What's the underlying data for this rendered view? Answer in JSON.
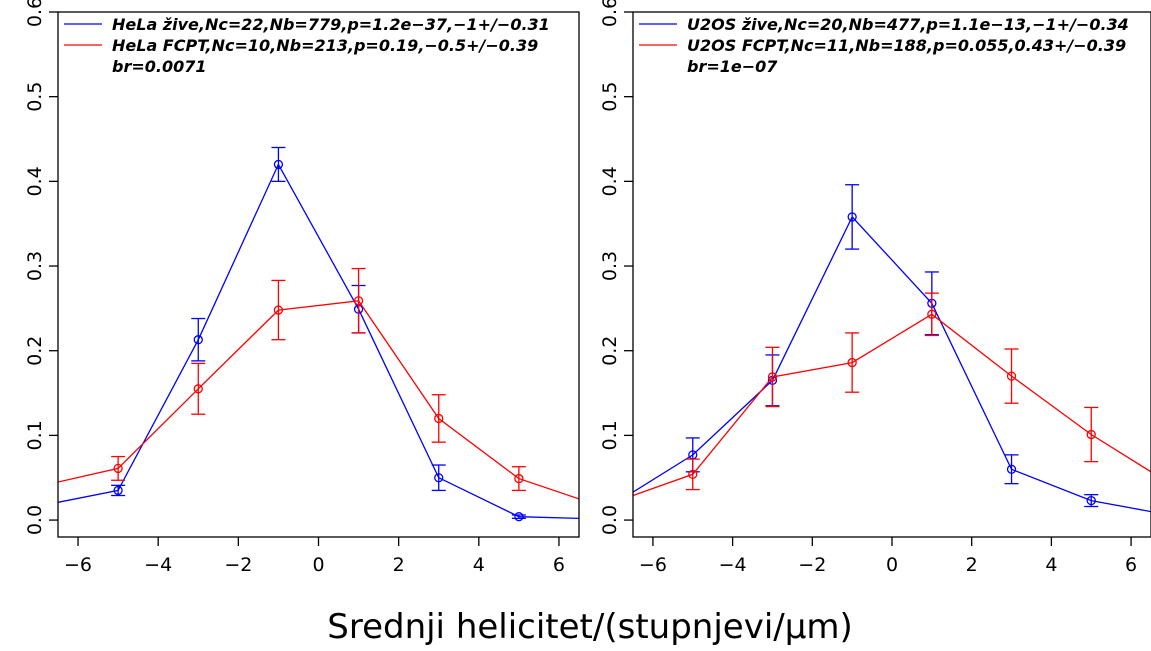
{
  "figure": {
    "xlabel": "Srednji helicitet/(stupnjevi/µm)"
  },
  "chart_data": [
    {
      "type": "line",
      "title": "",
      "xlabel": "",
      "ylabel": "",
      "xlim": [
        -6.5,
        6.5
      ],
      "ylim": [
        -0.02,
        0.6
      ],
      "xticks": [
        -6,
        -4,
        -2,
        0,
        2,
        4,
        6
      ],
      "xtick_labels": [
        "−6",
        "−4",
        "−2",
        "0",
        "2",
        "4",
        "6"
      ],
      "yticks": [
        0.0,
        0.1,
        0.2,
        0.3,
        0.4,
        0.5,
        0.6
      ],
      "ytick_labels": [
        "0.0",
        "0.1",
        "0.2",
        "0.3",
        "0.4",
        "0.5",
        "0.6"
      ],
      "grid": false,
      "legend_position": "top-left",
      "legend_note": "br=0.0071",
      "series": [
        {
          "name": "HeLa žive,Nc=22,Nb=779,p=1.2e−37,−1+/−0.31",
          "color": "#0000ff",
          "x": [
            -5,
            -3,
            -1,
            1,
            3,
            5
          ],
          "y": [
            0.035,
            0.213,
            0.42,
            0.249,
            0.05,
            0.004
          ],
          "err": [
            0.006,
            0.025,
            0.02,
            0.028,
            0.015,
            0.002
          ],
          "line_start": [
            -6.5,
            0.021
          ],
          "line_end": [
            6.5,
            0.002
          ]
        },
        {
          "name": "HeLa FCPT,Nc=10,Nb=213,p=0.19,−0.5+/−0.39",
          "color": "#ff0000",
          "x": [
            -5,
            -3,
            -1,
            1,
            3,
            5
          ],
          "y": [
            0.061,
            0.155,
            0.248,
            0.259,
            0.12,
            0.049
          ],
          "err": [
            0.014,
            0.03,
            0.035,
            0.038,
            0.028,
            0.014
          ],
          "line_start": [
            -6.5,
            0.045
          ],
          "line_end": [
            6.5,
            0.025
          ]
        }
      ]
    },
    {
      "type": "line",
      "title": "",
      "xlabel": "",
      "ylabel": "",
      "xlim": [
        -6.5,
        6.5
      ],
      "ylim": [
        -0.02,
        0.6
      ],
      "xticks": [
        -6,
        -4,
        -2,
        0,
        2,
        4,
        6
      ],
      "xtick_labels": [
        "−6",
        "−4",
        "−2",
        "0",
        "2",
        "4",
        "6"
      ],
      "yticks": [
        0.0,
        0.1,
        0.2,
        0.3,
        0.4,
        0.5,
        0.6
      ],
      "ytick_labels": [
        "0.0",
        "0.1",
        "0.2",
        "0.3",
        "0.4",
        "0.5",
        "0.6"
      ],
      "grid": false,
      "legend_position": "top-left",
      "legend_note": "br=1e−07",
      "series": [
        {
          "name": "U2OS žive,Nc=20,Nb=477,p=1.1e−13,−1+/−0.34",
          "color": "#0000ff",
          "x": [
            -5,
            -3,
            -1,
            1,
            3,
            5
          ],
          "y": [
            0.077,
            0.165,
            0.358,
            0.256,
            0.06,
            0.023
          ],
          "err": [
            0.02,
            0.03,
            0.038,
            0.037,
            0.017,
            0.007
          ],
          "line_start": [
            -6.5,
            0.033
          ],
          "line_end": [
            6.5,
            0.01
          ]
        },
        {
          "name": "U2OS FCPT,Nc=11,Nb=188,p=0.055,0.43+/−0.39",
          "color": "#ff0000",
          "x": [
            -5,
            -3,
            -1,
            1,
            3,
            5
          ],
          "y": [
            0.054,
            0.169,
            0.186,
            0.243,
            0.17,
            0.101
          ],
          "err": [
            0.018,
            0.035,
            0.035,
            0.025,
            0.032,
            0.032
          ],
          "line_start": [
            -6.5,
            0.029
          ],
          "line_end": [
            6.5,
            0.057
          ]
        }
      ]
    }
  ]
}
